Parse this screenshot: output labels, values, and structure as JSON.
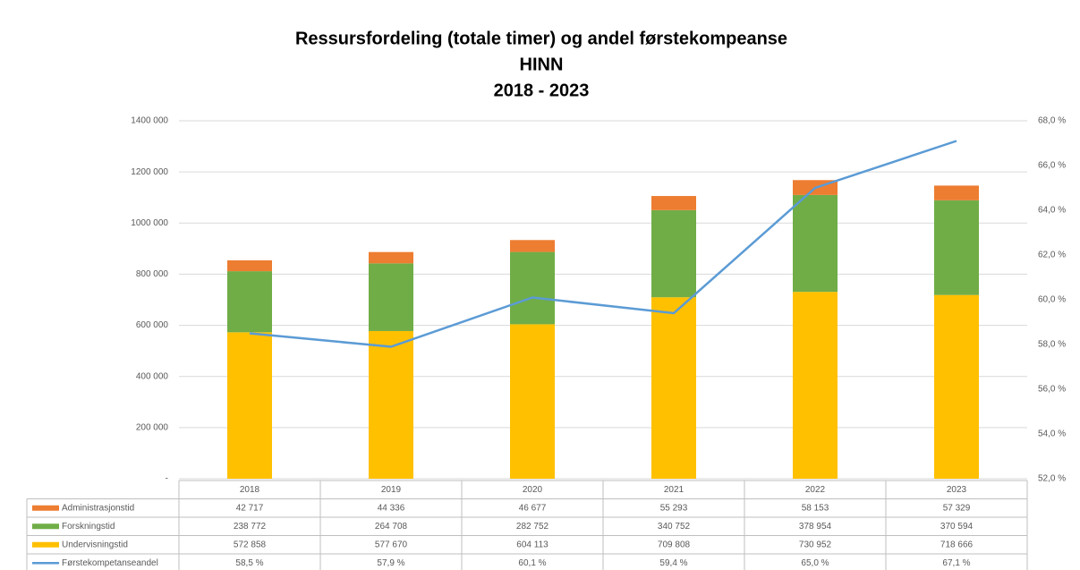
{
  "chart_data": {
    "type": "bar",
    "title": [
      "Ressursfordeling (totale timer) og andel førstekompeanse",
      "HINN",
      "2018 - 2023"
    ],
    "categories": [
      "2018",
      "2019",
      "2020",
      "2021",
      "2022",
      "2023"
    ],
    "stacked": true,
    "grid": true,
    "legend": "table",
    "series": [
      {
        "name": "Administrasjonstid",
        "color": "#ed7d31",
        "values": [
          42717,
          44336,
          46677,
          55293,
          58153,
          57329
        ],
        "value_labels": [
          "42 717",
          "44 336",
          "46 677",
          "55 293",
          "58 153",
          "57 329"
        ]
      },
      {
        "name": "Forskningstid",
        "color": "#70ad47",
        "values": [
          238772,
          264708,
          282752,
          340752,
          378954,
          370594
        ],
        "value_labels": [
          "238 772",
          "264 708",
          "282 752",
          "340 752",
          "378 954",
          "370 594"
        ]
      },
      {
        "name": "Undervisningstid",
        "color": "#ffc000",
        "values": [
          572858,
          577670,
          604113,
          709808,
          730952,
          718666
        ],
        "value_labels": [
          "572 858",
          "577 670",
          "604 113",
          "709 808",
          "730 952",
          "718 666"
        ]
      },
      {
        "name": "Førstekompetanseandel",
        "color": "#5b9bd5",
        "type": "line",
        "axis": "y2",
        "values": [
          58.5,
          57.9,
          60.1,
          59.4,
          65.0,
          67.1
        ],
        "value_labels": [
          "58,5 %",
          "57,9 %",
          "60,1 %",
          "59,4 %",
          "65,0 %",
          "67,1 %"
        ]
      }
    ],
    "ylim": [
      0,
      1400000
    ],
    "yticks": [
      {
        "value": 0,
        "label": "-"
      },
      {
        "value": 200000,
        "label": "200 000"
      },
      {
        "value": 400000,
        "label": "400 000"
      },
      {
        "value": 600000,
        "label": "600 000"
      },
      {
        "value": 800000,
        "label": "800 000"
      },
      {
        "value": 1000000,
        "label": "1000 000"
      },
      {
        "value": 1200000,
        "label": "1200 000"
      },
      {
        "value": 1400000,
        "label": "1400 000"
      }
    ],
    "y2lim": [
      52,
      68
    ],
    "y2ticks": [
      {
        "value": 52,
        "label": "52,0 %"
      },
      {
        "value": 54,
        "label": "54,0 %"
      },
      {
        "value": 56,
        "label": "56,0 %"
      },
      {
        "value": 58,
        "label": "58,0 %"
      },
      {
        "value": 60,
        "label": "60,0 %"
      },
      {
        "value": 62,
        "label": "62,0 %"
      },
      {
        "value": 64,
        "label": "64,0 %"
      },
      {
        "value": 66,
        "label": "66,0 %"
      },
      {
        "value": 68,
        "label": "68,0 %"
      }
    ]
  }
}
